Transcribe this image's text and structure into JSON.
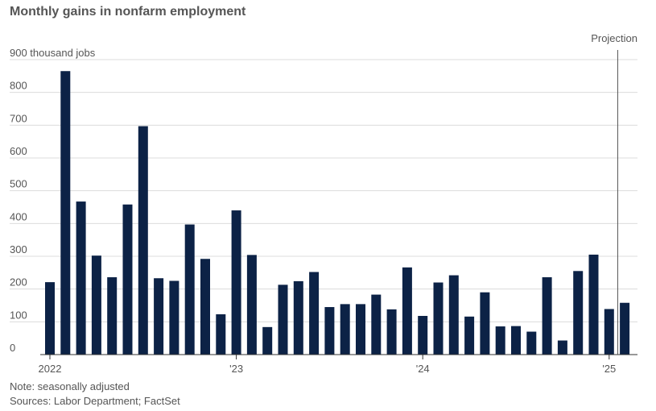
{
  "title": "Monthly gains in nonfarm employment",
  "note": "Note: seasonally adjusted",
  "sources": "Sources: Labor Department; FactSet",
  "colors": {
    "bar": "#0c2246",
    "grid": "#dcdcdc",
    "text": "#555555",
    "projection_line": "#555555"
  },
  "chart_data": {
    "type": "bar",
    "ylabel": "thousand jobs",
    "ylim": [
      0,
      900
    ],
    "yticks": [
      0,
      100,
      200,
      300,
      400,
      500,
      600,
      700,
      800,
      900
    ],
    "ytick_labels": [
      "0",
      "100",
      "200",
      "300",
      "400",
      "500",
      "600",
      "700",
      "800",
      "900 thousand jobs"
    ],
    "xtick_labels": [
      "2022",
      "'23",
      "'24",
      "'25"
    ],
    "xtick_categories": [
      "2022-01",
      "2023-01",
      "2024-01",
      "2025-01"
    ],
    "projection_label": "Projection",
    "projection_category": "2025-02",
    "categories": [
      "2022-01",
      "2022-02",
      "2022-03",
      "2022-04",
      "2022-05",
      "2022-06",
      "2022-07",
      "2022-08",
      "2022-09",
      "2022-10",
      "2022-11",
      "2022-12",
      "2023-01",
      "2023-02",
      "2023-03",
      "2023-04",
      "2023-05",
      "2023-06",
      "2023-07",
      "2023-08",
      "2023-09",
      "2023-10",
      "2023-11",
      "2023-12",
      "2024-01",
      "2024-02",
      "2024-03",
      "2024-04",
      "2024-05",
      "2024-06",
      "2024-07",
      "2024-08",
      "2024-09",
      "2024-10",
      "2024-11",
      "2024-12",
      "2025-01",
      "2025-02"
    ],
    "values": [
      221,
      865,
      467,
      302,
      236,
      458,
      697,
      233,
      225,
      397,
      292,
      123,
      440,
      304,
      84,
      213,
      224,
      252,
      145,
      154,
      154,
      183,
      138,
      266,
      118,
      220,
      242,
      116,
      190,
      86,
      87,
      70,
      236,
      43,
      255,
      305,
      139,
      158
    ],
    "grid": true
  }
}
